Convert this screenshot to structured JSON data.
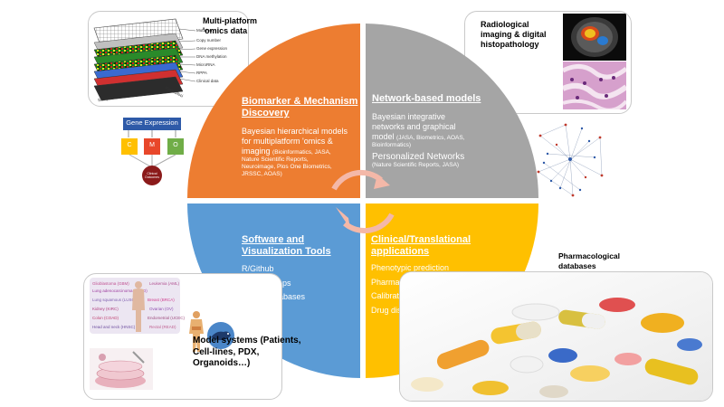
{
  "quadrants": {
    "biomarker": {
      "title": [
        "Biomarker & Mechanism",
        "Discovery"
      ],
      "lead": [
        "Bayesian hierarchical models",
        "for multiplatform 'omics  &",
        "imaging"
      ],
      "refs_inline": "(Bioinformatics, JASA,",
      "refs": [
        "Nature Scientific Reports,",
        "Neuroimage, Plos One Biometrics,",
        "JRSSC, AOAS)"
      ],
      "color": "#ed7d31"
    },
    "network": {
      "title": "Network-based models",
      "lead": [
        "Bayesian integrative",
        "networks and graphical",
        "model"
      ],
      "refs_inline": "(JASA, Biometrics, AOAS,",
      "refs": [
        "Bioinformatics)"
      ],
      "sub_title": "Personalized Networks",
      "sub_refs": "(Nature Scientific Reports, JASA)",
      "color": "#a5a5a5"
    },
    "software": {
      "title": [
        "Software and",
        "Visualization Tools"
      ],
      "items": [
        "R/Github",
        "R-Shiny Apps",
        "Online databases"
      ],
      "color": "#5b9bd5"
    },
    "clinical": {
      "title": [
        "Clinical/Translational",
        "applications"
      ],
      "items": [
        "Phenotypic prediction",
        "Pharmacogenomics",
        "Calibrating Rx-response",
        "Drug discovery &re-purposing"
      ],
      "color": "#ffc000"
    }
  },
  "captions": {
    "multiplatform": [
      "Multi-platform",
      "'omics data"
    ],
    "radiological": [
      "Radiological",
      "imaging & digital",
      "histopathology"
    ],
    "pharmacological": [
      "Pharmacological",
      "databases"
    ],
    "model_systems": [
      "Model systems (Patients,",
      "Cell-lines, PDX,",
      "Organoids…)"
    ]
  },
  "omics_layers": [
    "Mutation",
    "Copy number",
    "Gene expression",
    "DNA methylation",
    "MicroRNA",
    "RPPA",
    "Clinical data"
  ],
  "omics_axes": {
    "samples": "Samples",
    "genes": "Genes/loci"
  },
  "gene_expression": {
    "label": "Gene Expression",
    "boxes": [
      "C",
      "M",
      "O"
    ],
    "outcome": "Clinical Outcomes"
  },
  "cancer_types": [
    "Glioblastoma (GBM)",
    "Lung adenocarcinoma (LUAD)",
    "Lung squamous (LUSC)",
    "Breast (BRCA)",
    "Kidney (KIRC)",
    "Ovarian (OV)",
    "Colon (COAD)",
    "Endometrial (UCEC)",
    "Head and neck (HNSC)",
    "Rectal (READ)",
    "Leukemia (AML)"
  ],
  "colors": {
    "panel_border": "#c9c9c9",
    "arrow": "#f4b8a8",
    "ge_box": "#2e5aa8",
    "c_box": "#ffc000",
    "m_box": "#e8472a",
    "o_box": "#70ad47",
    "outcome": "#8b1a1a"
  }
}
